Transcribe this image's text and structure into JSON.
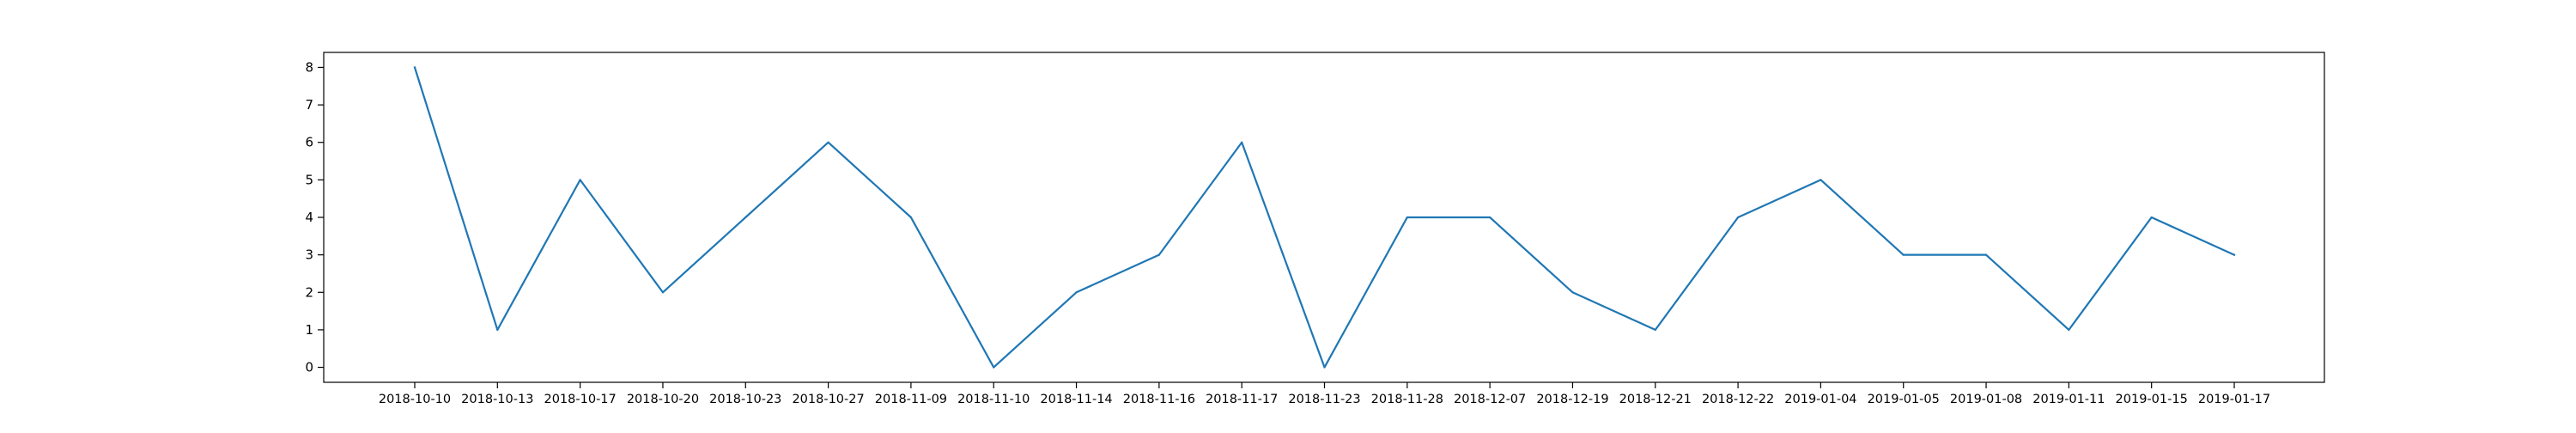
{
  "chart_data": {
    "type": "line",
    "title": "",
    "xlabel": "",
    "ylabel": "",
    "categories": [
      "2018-10-10",
      "2018-10-13",
      "2018-10-17",
      "2018-10-20",
      "2018-10-23",
      "2018-10-27",
      "2018-11-09",
      "2018-11-10",
      "2018-11-14",
      "2018-11-16",
      "2018-11-17",
      "2018-11-23",
      "2018-11-28",
      "2018-12-07",
      "2018-12-19",
      "2018-12-21",
      "2018-12-22",
      "2019-01-04",
      "2019-01-05",
      "2019-01-08",
      "2019-01-11",
      "2019-01-15",
      "2019-01-17"
    ],
    "series": [
      {
        "color": "#1f77b4",
        "values": [
          8,
          1,
          5,
          2,
          4,
          6,
          4,
          0,
          2,
          3,
          6,
          0,
          4,
          4,
          2,
          1,
          4,
          5,
          3,
          3,
          1,
          4,
          3
        ]
      }
    ],
    "yticks": [
      0,
      1,
      2,
      3,
      4,
      5,
      6,
      7,
      8
    ],
    "ylim": [
      -0.4,
      8.4
    ],
    "grid": false,
    "legend": "none"
  }
}
